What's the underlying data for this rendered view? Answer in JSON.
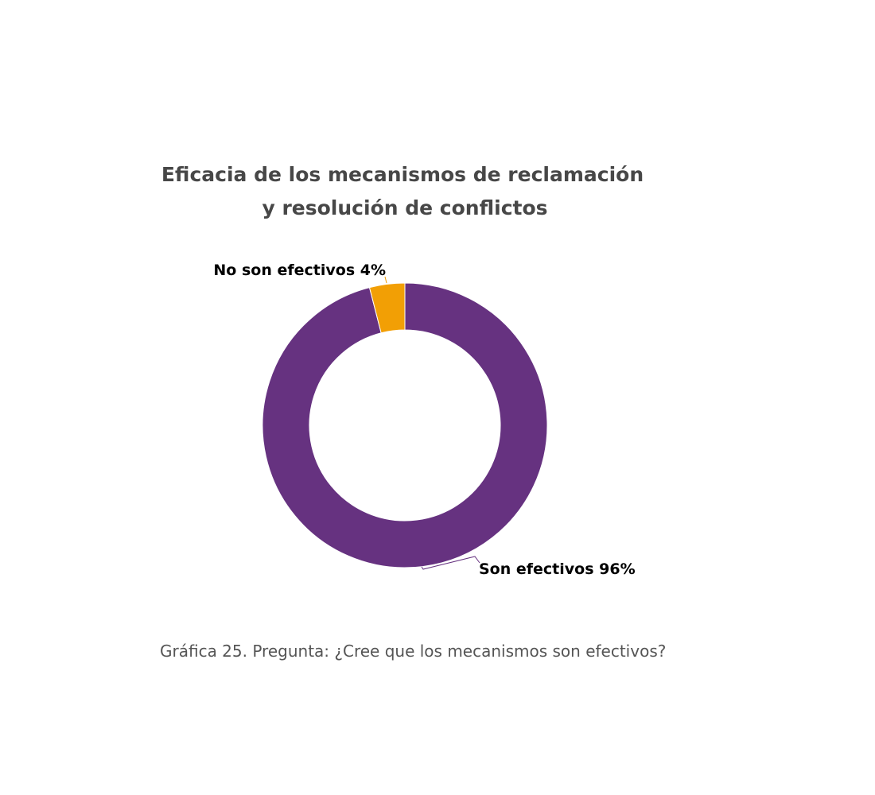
{
  "chart_data": {
    "type": "pie",
    "title": "Eficacia de los mecanismos de reclamación y resolución de conflictos",
    "title_lines": [
      "Eficacia de los mecanismos de reclamación",
      "y resolución de conflictos"
    ],
    "slices": [
      {
        "label": "Son efectivos 96%",
        "value": 96,
        "color": "#663280"
      },
      {
        "label": "No son efectivos 4%",
        "value": 4,
        "color": "#F29F05"
      }
    ],
    "legend": "none",
    "caption": "Gráfica 25. Pregunta: ¿Cree que los mecanismos son efectivos?"
  }
}
